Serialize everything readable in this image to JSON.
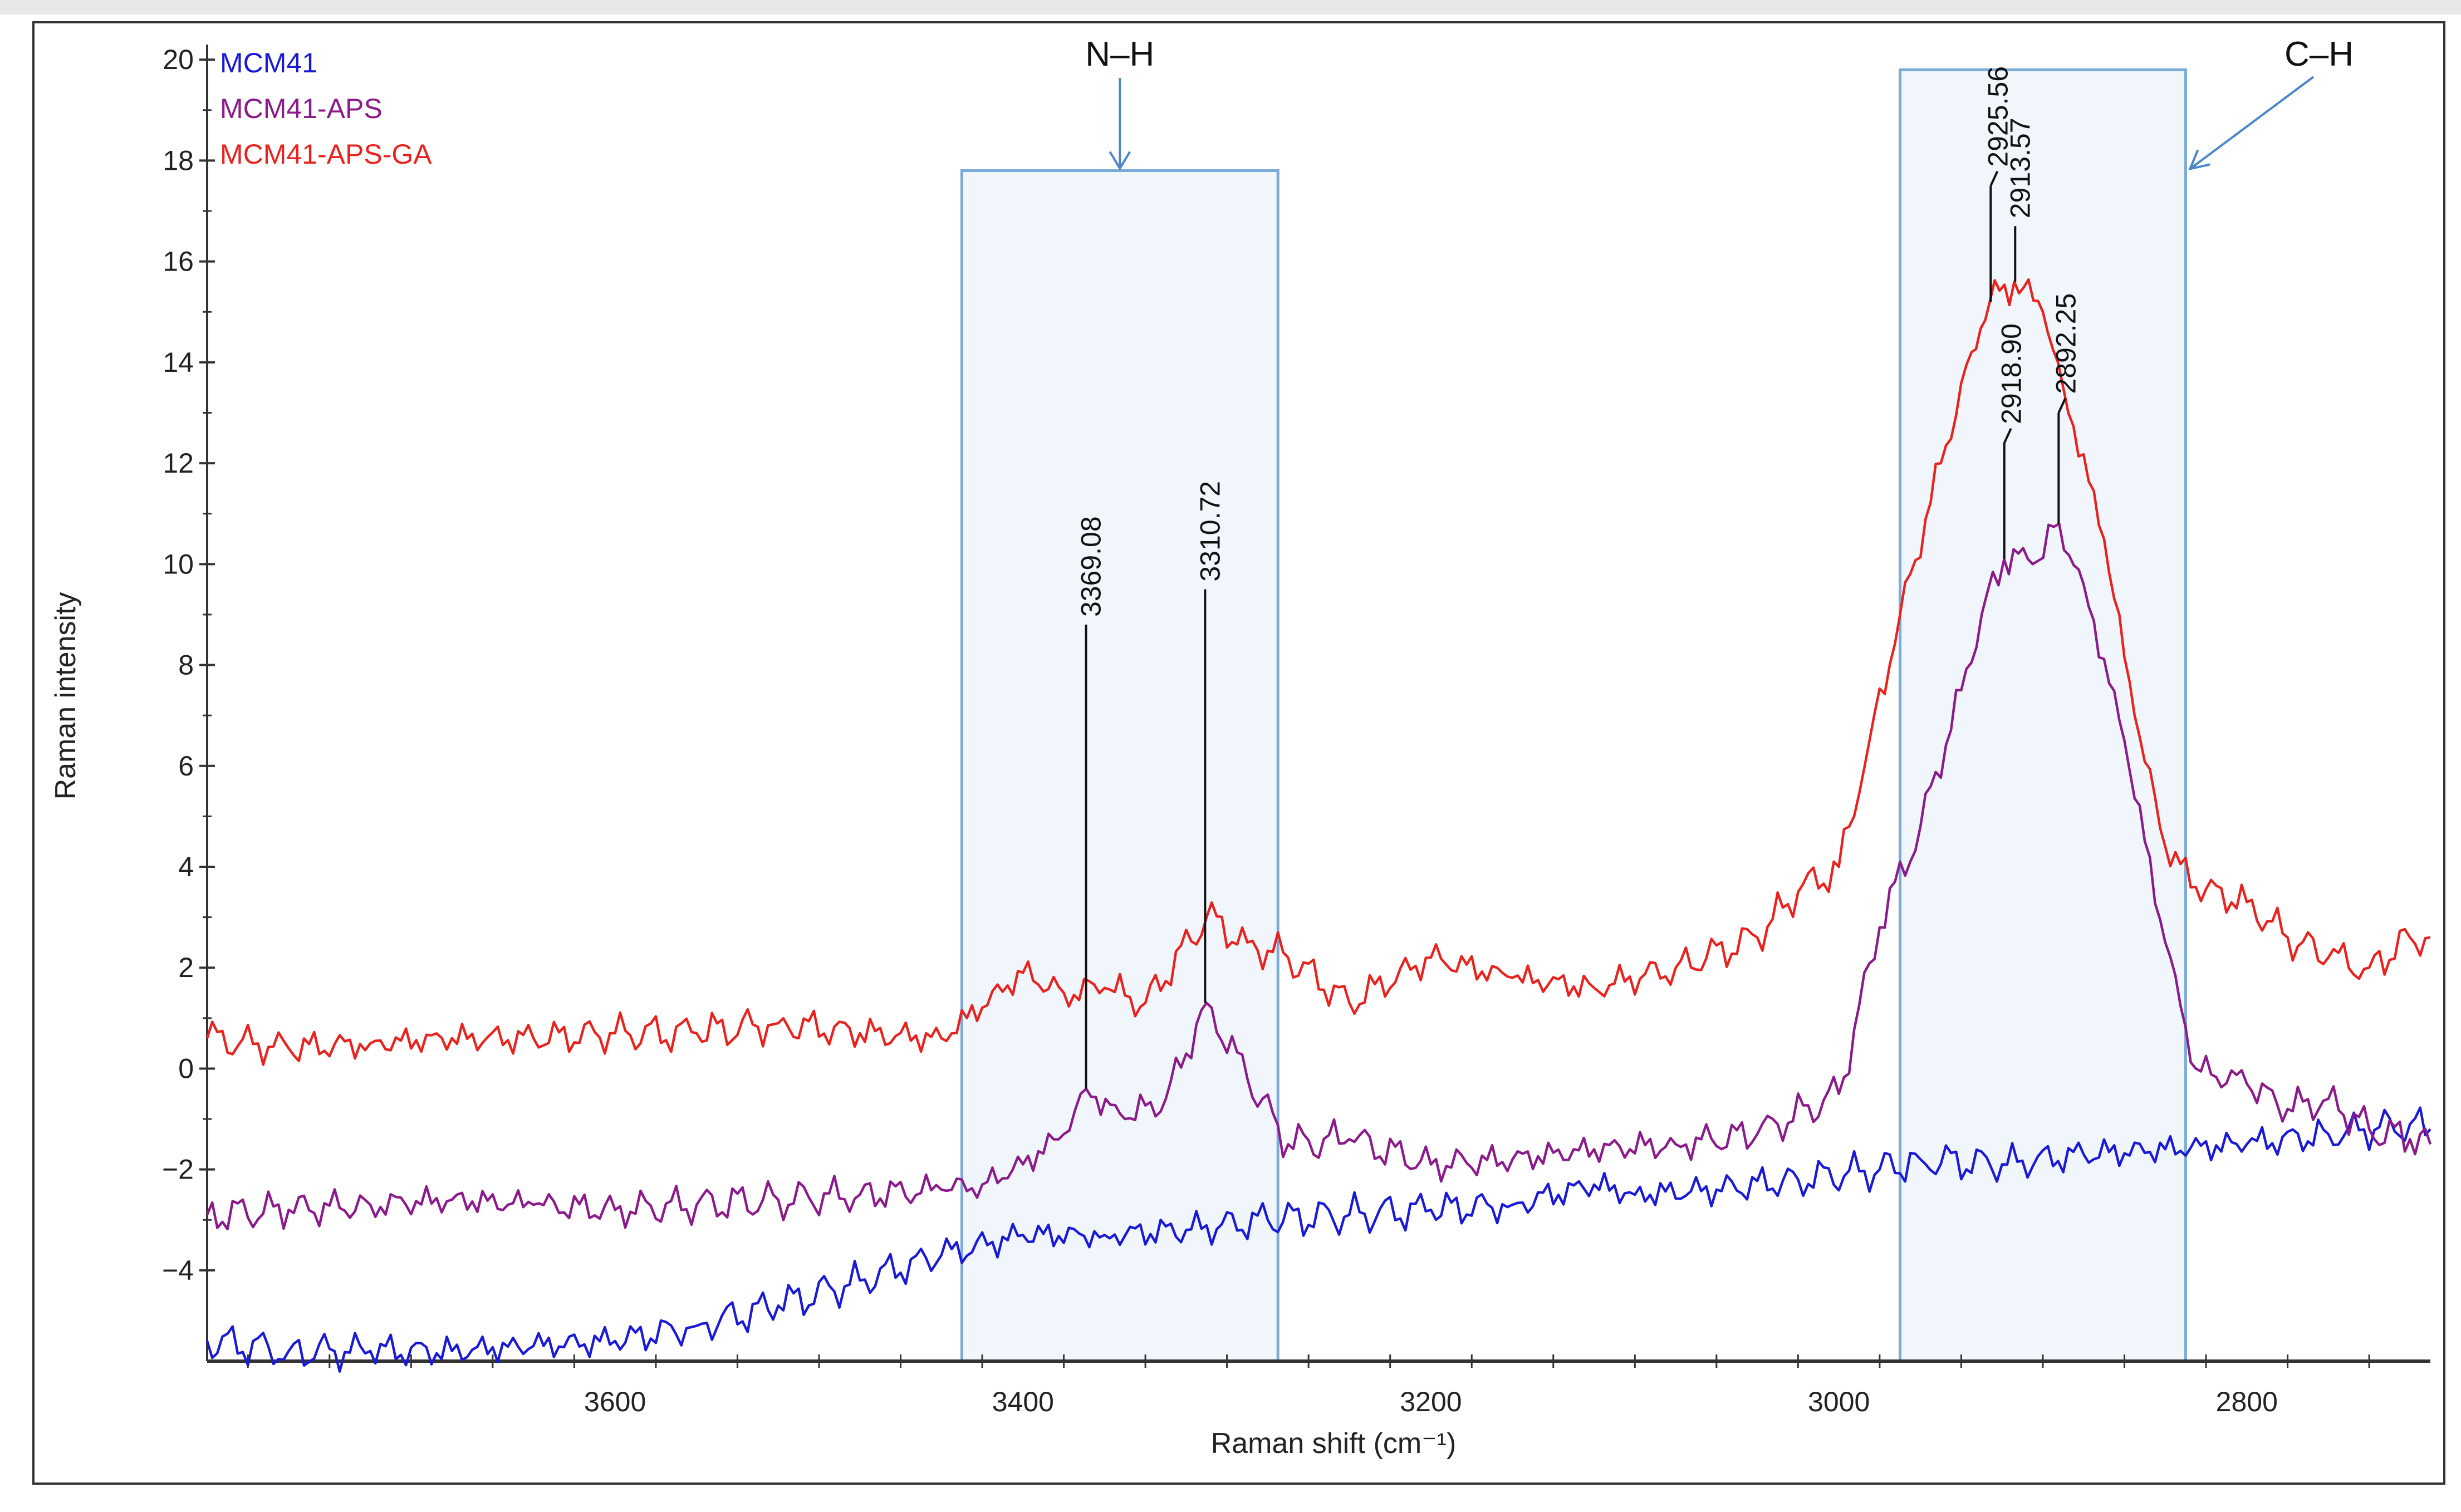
{
  "chart_data": {
    "type": "line",
    "title": "",
    "xlabel": "Raman shift (cm⁻¹)",
    "ylabel": "Raman intensity",
    "xlim": [
      3800,
      2710
    ],
    "ylim": [
      -5.8,
      20.3
    ],
    "xticks": [
      3600,
      3400,
      3200,
      3000,
      2800
    ],
    "xtick_labels": [
      "3600",
      "3400",
      "3200",
      "3000",
      "2800"
    ],
    "yticks": [
      -4,
      -2,
      0,
      2,
      4,
      6,
      8,
      10,
      12,
      14,
      16,
      18,
      20
    ],
    "ytick_labels": [
      "−4",
      "−2",
      "0",
      "2",
      "4",
      "6",
      "8",
      "10",
      "12",
      "14",
      "16",
      "18",
      "20"
    ],
    "grid": false,
    "legend": [
      "MCM41",
      "MCM41-APS",
      "MCM41-APS-GA"
    ],
    "legend_placement": "top-left",
    "series": [
      {
        "name": "MCM41",
        "color": "#1a1ad6",
        "x": [
          3800,
          3760,
          3720,
          3680,
          3640,
          3600,
          3560,
          3520,
          3480,
          3440,
          3400,
          3360,
          3320,
          3280,
          3240,
          3200,
          3160,
          3120,
          3100,
          3060,
          3020,
          2980,
          2960,
          2920,
          2880,
          2840,
          2800,
          2760,
          2720,
          2710
        ],
        "values": [
          -5.4,
          -5.6,
          -5.6,
          -5.6,
          -5.5,
          -5.4,
          -5.1,
          -4.7,
          -4.2,
          -3.7,
          -3.3,
          -3.3,
          -3.2,
          -3.0,
          -2.9,
          -2.8,
          -2.7,
          -2.3,
          -2.5,
          -2.4,
          -2.2,
          -2.0,
          -1.8,
          -1.9,
          -1.7,
          -1.6,
          -1.5,
          -1.3,
          -1.1,
          -1.2
        ]
      },
      {
        "name": "MCM41-APS",
        "color": "#8b1a8b",
        "x": [
          3800,
          3760,
          3720,
          3680,
          3640,
          3600,
          3560,
          3520,
          3480,
          3440,
          3420,
          3400,
          3380,
          3369,
          3350,
          3330,
          3310,
          3290,
          3270,
          3240,
          3200,
          3160,
          3120,
          3080,
          3040,
          3000,
          2980,
          2960,
          2940,
          2930,
          2919,
          2905,
          2892,
          2880,
          2860,
          2840,
          2825,
          2800,
          2780,
          2760,
          2740,
          2720,
          2710
        ],
        "values": [
          -2.9,
          -2.8,
          -2.7,
          -2.6,
          -2.7,
          -2.8,
          -2.7,
          -2.6,
          -2.5,
          -2.4,
          -2.3,
          -1.9,
          -1.3,
          -0.4,
          -1.0,
          -0.6,
          1.3,
          -0.2,
          -1.5,
          -1.4,
          -1.9,
          -1.8,
          -1.6,
          -1.5,
          -1.3,
          -0.5,
          2.8,
          4.8,
          7.5,
          9.0,
          10.1,
          10.0,
          10.8,
          9.6,
          6.5,
          2.5,
          0.0,
          -0.3,
          -0.8,
          -0.6,
          -1.2,
          -1.4,
          -1.5
        ]
      },
      {
        "name": "MCM41-APS-GA",
        "color": "#e8231e",
        "x": [
          3800,
          3760,
          3720,
          3680,
          3640,
          3600,
          3560,
          3520,
          3480,
          3440,
          3400,
          3380,
          3360,
          3340,
          3310,
          3290,
          3270,
          3240,
          3200,
          3160,
          3120,
          3080,
          3040,
          3020,
          3000,
          2985,
          2970,
          2950,
          2935,
          2926,
          2914,
          2900,
          2890,
          2870,
          2855,
          2840,
          2825,
          2800,
          2780,
          2760,
          2740,
          2720,
          2710
        ],
        "values": [
          0.6,
          0.4,
          0.5,
          0.6,
          0.6,
          0.7,
          0.7,
          0.9,
          0.7,
          0.6,
          1.9,
          1.5,
          1.6,
          1.3,
          3.0,
          2.5,
          2.2,
          1.3,
          2.2,
          1.8,
          1.6,
          2.0,
          2.6,
          3.5,
          4.0,
          6.5,
          9.0,
          12.0,
          14.2,
          15.2,
          15.6,
          15.0,
          13.5,
          10.5,
          7.0,
          4.4,
          3.6,
          3.3,
          2.6,
          2.2,
          2.0,
          2.6,
          2.6
        ]
      }
    ],
    "annotations": [
      {
        "text": "3369.08",
        "series": "MCM41-APS",
        "x": 3369.08,
        "y": -0.4
      },
      {
        "text": "3310.72",
        "series": "MCM41-APS",
        "x": 3310.72,
        "y": 1.3
      },
      {
        "text": "2918.90",
        "series": "MCM41-APS",
        "x": 2918.9,
        "y": 10.1
      },
      {
        "text": "2892.25",
        "series": "MCM41-APS",
        "x": 2892.25,
        "y": 10.8
      },
      {
        "text": "2925.56",
        "series": "MCM41-APS-GA",
        "x": 2925.56,
        "y": 15.2
      },
      {
        "text": "2913.57",
        "series": "MCM41-APS-GA",
        "x": 2913.57,
        "y": 15.6
      }
    ],
    "regions": [
      {
        "label": "N–H",
        "x_from": 3430,
        "x_to": 3275,
        "y_from": -5.8,
        "y_top": 17.8
      },
      {
        "label": "C–H",
        "x_from": 2970,
        "x_to": 2830,
        "y_from": -5.8,
        "y_top": 19.8
      }
    ]
  }
}
